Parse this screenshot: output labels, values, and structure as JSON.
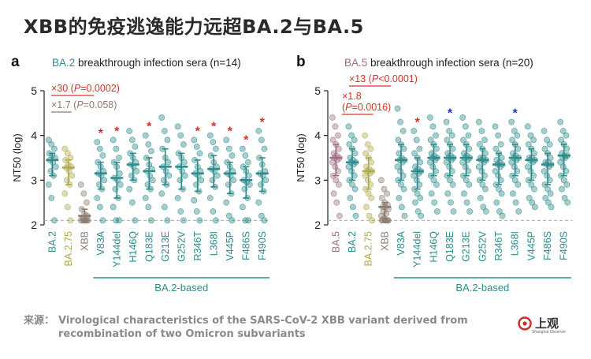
{
  "headline": "XBB的免疫逃逸能力远超BA.2与BA.5",
  "colors": {
    "teal": "#2e8b8b",
    "olive": "#b0a950",
    "gray": "#8d7b70",
    "rose": "#a06b82",
    "red": "#d9312a",
    "blue": "#2b3fbf",
    "star_red": "#d9312a",
    "star_blue": "#2233bb"
  },
  "chart_data": [
    {
      "type": "scatter",
      "panel_letter": "a",
      "title_prefix": "BA.2",
      "title_suffix": " breakthrough infection sera (n=14)",
      "ylabel": "NT50 (log)",
      "ylim": [
        2,
        5
      ],
      "yticks": [
        "2",
        "3",
        "4",
        "5"
      ],
      "detection_limit": 2.1,
      "categories": [
        "BA.2",
        "BA.2.75",
        "XBB",
        "V83A",
        "Y144del",
        "H146Q",
        "Q183E",
        "G213E",
        "G252V",
        "R346T",
        "L368I",
        "V445P",
        "F486S",
        "F490S"
      ],
      "category_colors": [
        "teal",
        "olive",
        "gray",
        "teal",
        "teal",
        "teal",
        "teal",
        "teal",
        "teal",
        "teal",
        "teal",
        "teal",
        "teal",
        "teal"
      ],
      "medians": [
        3.45,
        3.28,
        2.2,
        3.15,
        3.05,
        3.35,
        3.2,
        3.3,
        3.3,
        3.15,
        3.25,
        3.15,
        3.0,
        3.15
      ],
      "series": [
        {
          "values": [
            [
              3.9,
              3.8,
              3.7,
              3.6,
              3.55,
              3.5,
              3.45,
              3.4,
              3.3,
              3.2,
              3.1,
              2.9,
              2.6,
              2.1
            ],
            [
              3.7,
              3.6,
              3.5,
              3.45,
              3.35,
              3.3,
              3.28,
              3.2,
              3.1,
              3.0,
              2.9,
              2.7,
              2.4,
              2.1
            ],
            [
              2.9,
              2.7,
              2.5,
              2.35,
              2.25,
              2.2,
              2.15,
              2.1,
              2.1,
              2.1,
              2.1,
              2.1,
              2.1,
              2.1
            ],
            [
              3.85,
              3.7,
              3.55,
              3.4,
              3.3,
              3.2,
              3.15,
              3.1,
              3.0,
              2.9,
              2.8,
              2.6,
              2.4,
              2.1
            ],
            [
              3.9,
              3.7,
              3.5,
              3.4,
              3.3,
              3.15,
              3.05,
              3.0,
              2.9,
              2.8,
              2.6,
              2.4,
              2.1,
              2.1
            ],
            [
              4.1,
              3.9,
              3.75,
              3.6,
              3.5,
              3.4,
              3.35,
              3.3,
              3.2,
              3.1,
              3.0,
              2.8,
              2.5,
              2.1
            ],
            [
              4.0,
              3.8,
              3.65,
              3.5,
              3.35,
              3.25,
              3.2,
              3.1,
              3.0,
              2.9,
              2.8,
              2.6,
              2.4,
              2.1
            ],
            [
              4.4,
              4.1,
              3.9,
              3.7,
              3.5,
              3.4,
              3.3,
              3.2,
              3.1,
              3.0,
              2.9,
              2.7,
              2.4,
              2.1
            ],
            [
              4.2,
              4.0,
              3.8,
              3.6,
              3.5,
              3.4,
              3.3,
              3.2,
              3.1,
              3.0,
              2.8,
              2.6,
              2.3,
              2.1
            ],
            [
              3.9,
              3.75,
              3.6,
              3.45,
              3.3,
              3.2,
              3.15,
              3.1,
              3.0,
              2.9,
              2.75,
              2.55,
              2.3,
              2.1
            ],
            [
              4.0,
              3.85,
              3.7,
              3.55,
              3.4,
              3.3,
              3.25,
              3.2,
              3.1,
              3.0,
              2.85,
              2.6,
              2.3,
              2.1
            ],
            [
              3.9,
              3.7,
              3.55,
              3.4,
              3.3,
              3.2,
              3.15,
              3.1,
              3.0,
              2.9,
              2.7,
              2.5,
              2.2,
              2.1
            ],
            [
              3.7,
              3.55,
              3.4,
              3.3,
              3.2,
              3.1,
              3.0,
              2.95,
              2.9,
              2.8,
              2.6,
              2.4,
              2.1,
              2.1
            ],
            [
              4.1,
              3.9,
              3.7,
              3.5,
              3.35,
              3.2,
              3.15,
              3.1,
              3.0,
              2.9,
              2.75,
              2.5,
              2.2,
              2.1
            ]
          ]
        }
      ],
      "stars": [
        0,
        0,
        0,
        1,
        1,
        0,
        1,
        0,
        0,
        1,
        1,
        1,
        1,
        1
      ],
      "annotations": [
        {
          "parts": [
            [
              "×30 (",
              "red",
              false
            ],
            [
              "P",
              "red",
              true
            ],
            [
              "=0.0002)",
              "red",
              false
            ]
          ],
          "color": "red",
          "from": 0,
          "to": 2
        },
        {
          "parts": [
            [
              "×1.7 (",
              "gray",
              false
            ],
            [
              "P",
              "gray",
              true
            ],
            [
              "=0.058)",
              "gray",
              false
            ]
          ],
          "color": "gray",
          "from": 0,
          "to": 1
        }
      ],
      "group_label": "BA.2-based"
    },
    {
      "type": "scatter",
      "panel_letter": "b",
      "title_prefix": "BA.5",
      "title_suffix": " breakthrough infection sera (n=20)",
      "ylabel": "NT50 (log)",
      "ylim": [
        2,
        5
      ],
      "yticks": [
        "2",
        "3",
        "4",
        "5"
      ],
      "detection_limit": 2.1,
      "categories": [
        "BA.5",
        "BA.2",
        "BA.2.75",
        "XBB",
        "V83A",
        "Y144del",
        "H146Q",
        "Q183E",
        "G213E",
        "G252V",
        "R346T",
        "L368I",
        "V445P",
        "F486S",
        "F490S"
      ],
      "category_colors": [
        "rose",
        "teal",
        "olive",
        "gray",
        "teal",
        "teal",
        "teal",
        "teal",
        "teal",
        "teal",
        "teal",
        "teal",
        "teal",
        "teal",
        "teal"
      ],
      "medians": [
        3.5,
        3.4,
        3.2,
        2.4,
        3.45,
        3.2,
        3.5,
        3.5,
        3.5,
        3.45,
        3.35,
        3.5,
        3.45,
        3.35,
        3.55
      ],
      "series": [
        {
          "values": [
            [
              4.4,
              4.2,
              4.0,
              3.9,
              3.8,
              3.7,
              3.6,
              3.55,
              3.5,
              3.5,
              3.45,
              3.4,
              3.3,
              3.2,
              3.1,
              3.0,
              2.9,
              2.7,
              2.5,
              2.2
            ],
            [
              4.2,
              4.0,
              3.9,
              3.8,
              3.7,
              3.6,
              3.5,
              3.45,
              3.4,
              3.4,
              3.35,
              3.3,
              3.2,
              3.1,
              3.0,
              2.9,
              2.8,
              2.6,
              2.4,
              2.2
            ],
            [
              4.0,
              3.8,
              3.7,
              3.6,
              3.5,
              3.4,
              3.3,
              3.25,
              3.2,
              3.2,
              3.15,
              3.1,
              3.0,
              2.9,
              2.8,
              2.7,
              2.6,
              2.4,
              2.2,
              2.1
            ],
            [
              3.0,
              2.8,
              2.7,
              2.6,
              2.5,
              2.45,
              2.4,
              2.4,
              2.35,
              2.3,
              2.25,
              2.2,
              2.15,
              2.1,
              2.1,
              2.1,
              2.1,
              2.1,
              2.1,
              2.1
            ],
            [
              4.6,
              4.3,
              4.1,
              3.9,
              3.8,
              3.7,
              3.6,
              3.5,
              3.45,
              3.45,
              3.4,
              3.3,
              3.2,
              3.1,
              3.0,
              2.9,
              2.8,
              2.6,
              2.4,
              2.2
            ],
            [
              4.1,
              3.9,
              3.7,
              3.6,
              3.5,
              3.4,
              3.3,
              3.25,
              3.2,
              3.2,
              3.15,
              3.1,
              3.0,
              2.9,
              2.8,
              2.7,
              2.6,
              2.5,
              2.3,
              2.2
            ],
            [
              4.4,
              4.2,
              4.0,
              3.9,
              3.8,
              3.7,
              3.6,
              3.55,
              3.5,
              3.5,
              3.45,
              3.4,
              3.3,
              3.2,
              3.1,
              3.0,
              2.9,
              2.7,
              2.5,
              2.3
            ],
            [
              4.3,
              4.1,
              4.0,
              3.9,
              3.8,
              3.7,
              3.6,
              3.55,
              3.5,
              3.5,
              3.45,
              3.4,
              3.3,
              3.2,
              3.1,
              3.0,
              2.9,
              2.7,
              2.5,
              2.3
            ],
            [
              4.4,
              4.2,
              4.0,
              3.9,
              3.8,
              3.7,
              3.6,
              3.55,
              3.5,
              3.5,
              3.45,
              3.4,
              3.3,
              3.2,
              3.1,
              3.0,
              2.9,
              2.7,
              2.5,
              2.3
            ],
            [
              4.3,
              4.1,
              3.9,
              3.8,
              3.7,
              3.6,
              3.5,
              3.5,
              3.45,
              3.45,
              3.4,
              3.3,
              3.2,
              3.1,
              3.0,
              2.9,
              2.8,
              2.6,
              2.4,
              2.3
            ],
            [
              4.2,
              4.0,
              3.8,
              3.7,
              3.6,
              3.5,
              3.45,
              3.4,
              3.35,
              3.35,
              3.3,
              3.2,
              3.1,
              3.0,
              2.9,
              2.8,
              2.7,
              2.5,
              2.3,
              2.2
            ],
            [
              4.3,
              4.1,
              4.0,
              3.9,
              3.8,
              3.7,
              3.6,
              3.55,
              3.5,
              3.5,
              3.45,
              3.4,
              3.3,
              3.2,
              3.1,
              3.0,
              2.9,
              2.7,
              2.5,
              2.3
            ],
            [
              4.2,
              4.0,
              3.9,
              3.8,
              3.7,
              3.6,
              3.5,
              3.5,
              3.45,
              3.45,
              3.4,
              3.3,
              3.2,
              3.1,
              3.0,
              2.9,
              2.8,
              2.6,
              2.5,
              2.4
            ],
            [
              4.1,
              3.9,
              3.8,
              3.7,
              3.6,
              3.5,
              3.4,
              3.4,
              3.35,
              3.35,
              3.3,
              3.2,
              3.1,
              3.0,
              2.9,
              2.8,
              2.7,
              2.6,
              2.5,
              2.4
            ],
            [
              4.3,
              4.1,
              4.0,
              3.9,
              3.8,
              3.7,
              3.6,
              3.55,
              3.55,
              3.5,
              3.5,
              3.4,
              3.3,
              3.2,
              3.1,
              3.0,
              2.9,
              2.8,
              2.6,
              2.5
            ]
          ]
        }
      ],
      "stars": [
        0,
        0,
        0,
        0,
        0,
        1,
        0,
        2,
        0,
        0,
        0,
        2,
        0,
        0,
        0
      ],
      "annotations": [
        {
          "parts": [
            [
              "×13 (",
              "red",
              false
            ],
            [
              "P",
              "red",
              true
            ],
            [
              "<0.0001)",
              "red",
              false
            ]
          ],
          "color": "red",
          "from": 0,
          "to": 3
        },
        {
          "parts": [
            [
              "×1.8",
              "red",
              false
            ]
          ],
          "color": "red",
          "from": 0,
          "to": 2
        },
        {
          "parts": [
            [
              "(",
              "red",
              false
            ],
            [
              "P",
              "red",
              true
            ],
            [
              "=0.0016)",
              "red",
              false
            ]
          ],
          "color": "red",
          "from": 0,
          "to": 2
        }
      ],
      "group_label": "BA.2-based"
    }
  ],
  "source": {
    "label": "来源：",
    "text": "Virological characteristics of the SARS-CoV-2 XBB variant derived from recombination of two Omicron subvariants"
  },
  "logo": {
    "name": "上观",
    "sub": "Shanghai Observer"
  }
}
